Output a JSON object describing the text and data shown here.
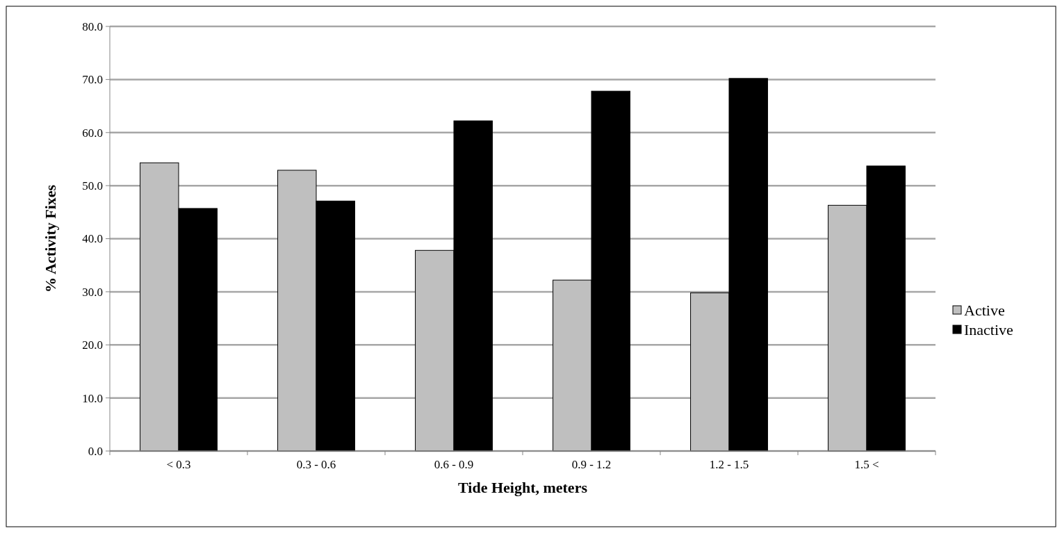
{
  "chart_data": {
    "type": "bar",
    "xlabel": "Tide Height, meters",
    "ylabel": "% Activity Fixes",
    "categories": [
      "< 0.3",
      "0.3 - 0.6",
      "0.6 - 0.9",
      "0.9 - 1.2",
      "1.2 - 1.5",
      "1.5 <"
    ],
    "series": [
      {
        "name": "Active",
        "color": "#bfbfbf",
        "values": [
          54.3,
          52.9,
          37.8,
          32.2,
          29.8,
          46.3
        ]
      },
      {
        "name": "Inactive",
        "color": "#000000",
        "values": [
          45.7,
          47.1,
          62.2,
          67.8,
          70.2,
          53.7
        ]
      }
    ],
    "ylim": [
      0,
      80
    ],
    "yticks": [
      {
        "value": 0,
        "label": "0.0"
      },
      {
        "value": 10,
        "label": "10.0"
      },
      {
        "value": 20,
        "label": "20.0"
      },
      {
        "value": 30,
        "label": "30.0"
      },
      {
        "value": 40,
        "label": "40.0"
      },
      {
        "value": 50,
        "label": "50.0"
      },
      {
        "value": 60,
        "label": "60.0"
      },
      {
        "value": 70,
        "label": "70.0"
      },
      {
        "value": 80,
        "label": "80.0"
      }
    ],
    "grid": "y",
    "legend": "right"
  }
}
